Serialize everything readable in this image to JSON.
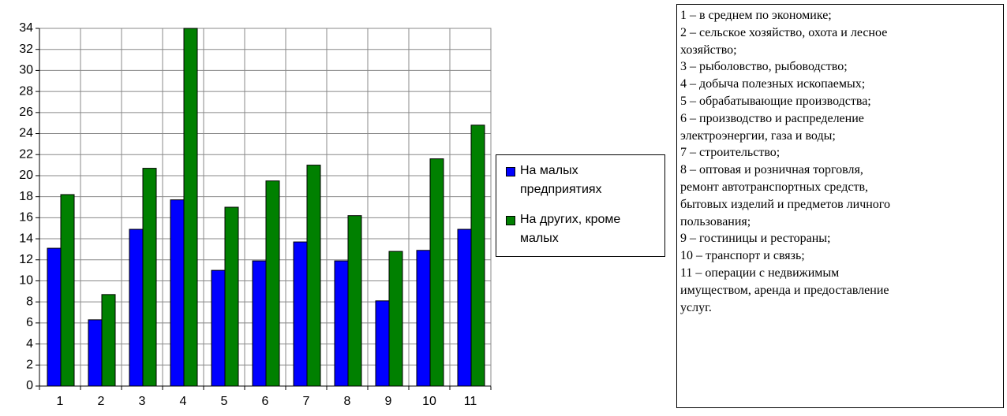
{
  "chart_data": {
    "type": "bar",
    "categories": [
      "1",
      "2",
      "3",
      "4",
      "5",
      "6",
      "7",
      "8",
      "9",
      "10",
      "11"
    ],
    "series": [
      {
        "name": "На малых предприятиях",
        "color": "#0000ff",
        "values": [
          13.1,
          6.3,
          14.9,
          17.7,
          11.0,
          11.9,
          13.7,
          11.9,
          8.1,
          12.9,
          14.9
        ]
      },
      {
        "name": "На других, кроме малых",
        "color": "#008000",
        "values": [
          18.2,
          8.7,
          20.7,
          34,
          17.0,
          19.5,
          21.0,
          16.2,
          12.8,
          21.6,
          24.8
        ]
      }
    ],
    "ylim": [
      0,
      34
    ],
    "yticks": [
      0,
      2,
      4,
      6,
      8,
      10,
      12,
      14,
      16,
      18,
      20,
      22,
      24,
      26,
      28,
      30,
      32,
      34
    ],
    "grid": true,
    "legend": "right",
    "notes": [
      "1 – в среднем по экономике;",
      "2 – сельское хозяйство, охота и лесное",
      "хозяйство;",
      "3 – рыболовство, рыбоводство;",
      "4 – добыча полезных ископаемых;",
      "5 – обрабатывающие производства;",
      "6 – производство и распределение",
      "электроэнергии, газа и воды;",
      "7 – строительство;",
      "8 – оптовая и розничная торговля,",
      "ремонт автотранспортных средств,",
      "бытовых изделий и предметов личного",
      "пользования;",
      "9 – гостиницы и рестораны;",
      "10 – транспорт и связь;",
      "11 – операции с недвижимым",
      "имуществом, аренда и предоставление",
      "услуг."
    ]
  }
}
